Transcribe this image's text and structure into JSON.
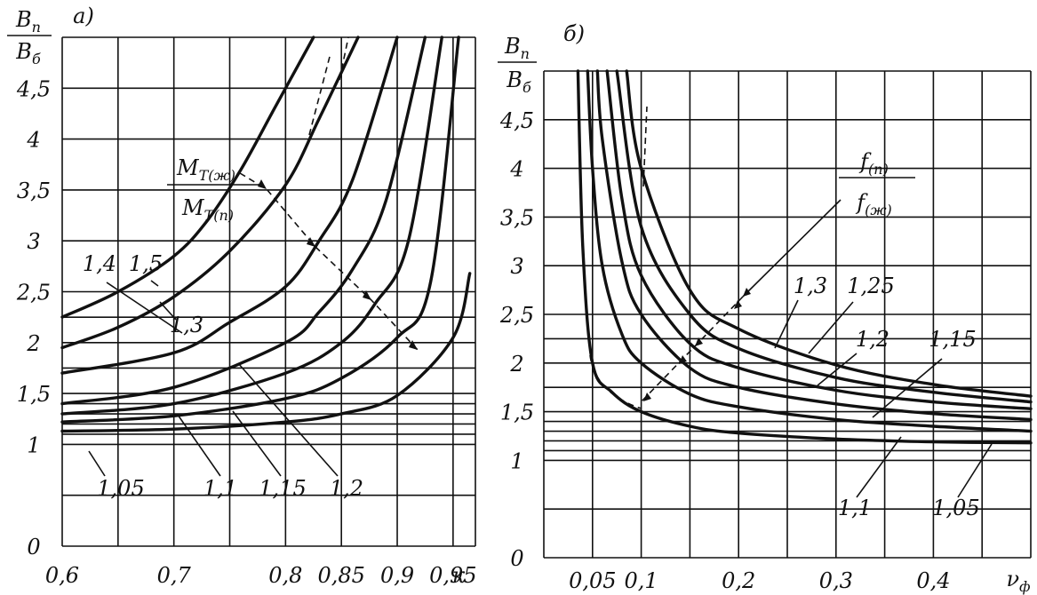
{
  "chart_data": [
    {
      "type": "line",
      "panel_label": "а)",
      "ylabel_num": "B_п",
      "ylabel_den": "B_б",
      "xlabel": "к",
      "xlim": [
        0.6,
        0.97
      ],
      "ylim": [
        0,
        5
      ],
      "x_ticks": [
        "0,6",
        "0,7",
        "0,8",
        "0,85",
        "0,9",
        "0,95"
      ],
      "y_ticks": [
        "0",
        "1",
        "1,5",
        "2",
        "2,5",
        "3",
        "3,5",
        "4",
        "4,5"
      ],
      "annotation_num": "М_Т(ж)",
      "annotation_den": "М_Т(п)",
      "series": [
        {
          "name": "1,05",
          "x": [
            0.6,
            0.7,
            0.8,
            0.85,
            0.9,
            0.95,
            0.965
          ],
          "y": [
            1.13,
            1.15,
            1.22,
            1.3,
            1.48,
            2.05,
            2.68
          ]
        },
        {
          "name": "1,1",
          "x": [
            0.6,
            0.7,
            0.8,
            0.85,
            0.9,
            0.93,
            0.955
          ],
          "y": [
            1.22,
            1.28,
            1.45,
            1.65,
            2.05,
            2.6,
            5.0
          ]
        },
        {
          "name": "1,15",
          "x": [
            0.6,
            0.7,
            0.8,
            0.85,
            0.88,
            0.91,
            0.94
          ],
          "y": [
            1.3,
            1.4,
            1.7,
            2.0,
            2.38,
            3.0,
            5.0
          ]
        },
        {
          "name": "1,2",
          "x": [
            0.6,
            0.7,
            0.8,
            0.83,
            0.86,
            0.89,
            0.925
          ],
          "y": [
            1.4,
            1.56,
            2.0,
            2.3,
            2.72,
            3.4,
            5.0
          ]
        },
        {
          "name": "1,3",
          "x": [
            0.6,
            0.7,
            0.75,
            0.8,
            0.83,
            0.86,
            0.9
          ],
          "y": [
            1.7,
            1.9,
            2.2,
            2.55,
            3.0,
            3.6,
            5.0
          ]
        },
        {
          "name": "1,4",
          "x": [
            0.6,
            0.65,
            0.7,
            0.75,
            0.8,
            0.83,
            0.865
          ],
          "y": [
            1.95,
            2.15,
            2.45,
            2.9,
            3.55,
            4.2,
            5.0
          ]
        },
        {
          "name": "1,5",
          "x": [
            0.6,
            0.65,
            0.7,
            0.73,
            0.76,
            0.79,
            0.825
          ],
          "y": [
            2.25,
            2.5,
            2.85,
            3.2,
            3.7,
            4.3,
            5.0
          ]
        }
      ]
    },
    {
      "type": "line",
      "panel_label": "б)",
      "ylabel_num": "B_п",
      "ylabel_den": "B_б",
      "xlabel": "ν_ф",
      "xlim": [
        0,
        0.5
      ],
      "ylim": [
        0,
        5
      ],
      "x_ticks": [
        "0,05",
        "0,1",
        "0,2",
        "0,3",
        "0,4"
      ],
      "y_ticks": [
        "0",
        "1",
        "1,5",
        "2",
        "2,5",
        "3",
        "3,5",
        "4",
        "4,5"
      ],
      "legend_num": "f_(п)",
      "legend_den": "f_(ж)",
      "series": [
        {
          "name": "1,05",
          "x": [
            0.035,
            0.04,
            0.05,
            0.07,
            0.1,
            0.15,
            0.2,
            0.3,
            0.4,
            0.5
          ],
          "y": [
            5.0,
            3.2,
            2.0,
            1.7,
            1.5,
            1.35,
            1.28,
            1.22,
            1.19,
            1.18
          ]
        },
        {
          "name": "1,1",
          "x": [
            0.045,
            0.05,
            0.06,
            0.08,
            0.1,
            0.15,
            0.2,
            0.3,
            0.4,
            0.5
          ],
          "y": [
            5.0,
            4.0,
            3.0,
            2.3,
            2.0,
            1.68,
            1.55,
            1.42,
            1.35,
            1.3
          ]
        },
        {
          "name": "1,15",
          "x": [
            0.055,
            0.06,
            0.08,
            0.1,
            0.15,
            0.2,
            0.3,
            0.4,
            0.5
          ],
          "y": [
            5.0,
            4.3,
            3.05,
            2.5,
            1.95,
            1.75,
            1.58,
            1.48,
            1.42
          ]
        },
        {
          "name": "1,2",
          "x": [
            0.065,
            0.08,
            0.1,
            0.15,
            0.2,
            0.3,
            0.4,
            0.5
          ],
          "y": [
            5.0,
            3.7,
            2.9,
            2.2,
            1.95,
            1.72,
            1.6,
            1.53
          ]
        },
        {
          "name": "1,25",
          "x": [
            0.075,
            0.1,
            0.15,
            0.2,
            0.3,
            0.4,
            0.5
          ],
          "y": [
            5.0,
            3.4,
            2.5,
            2.15,
            1.85,
            1.7,
            1.6
          ]
        },
        {
          "name": "1,3",
          "x": [
            0.085,
            0.1,
            0.15,
            0.2,
            0.3,
            0.4,
            0.5
          ],
          "y": [
            5.0,
            4.0,
            2.75,
            2.35,
            1.98,
            1.78,
            1.66
          ]
        }
      ]
    }
  ]
}
